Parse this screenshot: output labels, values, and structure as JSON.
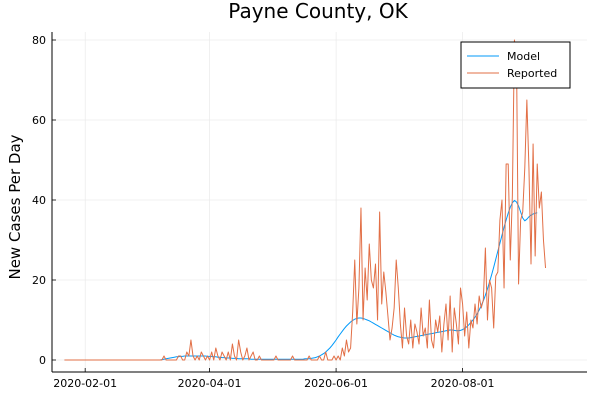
{
  "chart_data": {
    "type": "line",
    "title": "Payne County, OK",
    "xlabel": "",
    "ylabel": "New Cases Per Day",
    "x_start": "2020-01-22",
    "xlim": [
      "2020-01-16",
      "2020-09-30"
    ],
    "ylim": [
      -3,
      82
    ],
    "x_ticks": [
      "2020-02-01",
      "2020-04-01",
      "2020-06-01",
      "2020-08-01"
    ],
    "y_ticks": [
      0,
      20,
      40,
      60,
      80
    ],
    "grid": true,
    "legend_position": "top-right",
    "series": [
      {
        "name": "Model",
        "color": "#009AFA",
        "values": [
          0,
          0,
          0,
          0,
          0,
          0,
          0,
          0,
          0,
          0,
          0,
          0,
          0,
          0,
          0,
          0,
          0,
          0,
          0,
          0,
          0,
          0,
          0,
          0,
          0,
          0,
          0,
          0,
          0,
          0,
          0,
          0,
          0,
          0,
          0,
          0,
          0,
          0,
          0,
          0,
          0,
          0,
          0,
          0,
          0,
          0,
          0,
          0.1,
          0.2,
          0.3,
          0.4,
          0.5,
          0.6,
          0.7,
          0.8,
          0.8,
          0.9,
          0.9,
          1,
          1,
          1,
          1,
          1,
          1,
          1,
          1,
          1,
          1,
          1,
          0.9,
          0.9,
          0.9,
          0.8,
          0.8,
          0.7,
          0.7,
          0.6,
          0.6,
          0.5,
          0.5,
          0.5,
          0.4,
          0.4,
          0.4,
          0.3,
          0.3,
          0.3,
          0.3,
          0.3,
          0.3,
          0.2,
          0.2,
          0.2,
          0.2,
          0.2,
          0.2,
          0.2,
          0.2,
          0.2,
          0.2,
          0.2,
          0.2,
          0.2,
          0.2,
          0.2,
          0.2,
          0.2,
          0.2,
          0.2,
          0.2,
          0.2,
          0.2,
          0.2,
          0.2,
          0.2,
          0.2,
          0.3,
          0.3,
          0.3,
          0.4,
          0.5,
          0.6,
          0.8,
          1.0,
          1.3,
          1.6,
          2.0,
          2.5,
          3.0,
          3.6,
          4.3,
          5.0,
          5.8,
          6.5,
          7.2,
          7.9,
          8.5,
          9.0,
          9.5,
          9.9,
          10.2,
          10.4,
          10.5,
          10.5,
          10.4,
          10.2,
          10.0,
          9.8,
          9.5,
          9.2,
          8.9,
          8.6,
          8.3,
          8.0,
          7.7,
          7.4,
          7.1,
          6.8,
          6.5,
          6.2,
          6.0,
          5.8,
          5.7,
          5.6,
          5.5,
          5.5,
          5.5,
          5.6,
          5.7,
          5.8,
          5.9,
          6.0,
          6.1,
          6.2,
          6.3,
          6.4,
          6.5,
          6.6,
          6.7,
          6.8,
          6.9,
          7.0,
          7.1,
          7.2,
          7.3,
          7.4,
          7.5,
          7.5,
          7.4,
          7.3,
          7.3,
          7.4,
          7.6,
          7.9,
          8.3,
          8.8,
          9.4,
          10.0,
          10.7,
          11.5,
          12.5,
          13.6,
          14.8,
          16.2,
          17.8,
          19.5,
          21.3,
          23.2,
          25.2,
          27.2,
          29.2,
          31.2,
          33.2,
          35.0,
          36.7,
          38.2,
          39.3,
          39.9,
          39.5,
          38.5,
          37.0,
          35.5,
          34.8,
          35.2,
          35.8,
          36.2,
          36.5,
          36.7,
          36.8
        ]
      },
      {
        "name": "Reported",
        "color": "#E26F46",
        "values": [
          0,
          0,
          0,
          0,
          0,
          0,
          0,
          0,
          0,
          0,
          0,
          0,
          0,
          0,
          0,
          0,
          0,
          0,
          0,
          0,
          0,
          0,
          0,
          0,
          0,
          0,
          0,
          0,
          0,
          0,
          0,
          0,
          0,
          0,
          0,
          0,
          0,
          0,
          0,
          0,
          0,
          0,
          0,
          0,
          0,
          0,
          0,
          0,
          1,
          0,
          0,
          0,
          0,
          0,
          0,
          1,
          1,
          0,
          0,
          2,
          1,
          5,
          1,
          0,
          1,
          0,
          2,
          1,
          0,
          1,
          0,
          2,
          0,
          3,
          1,
          0,
          2,
          1,
          0,
          2,
          0,
          4,
          1,
          0,
          5,
          2,
          0,
          1,
          3,
          0,
          1,
          2,
          0,
          0,
          1,
          0,
          0,
          0,
          0,
          0,
          0,
          0,
          1,
          0,
          0,
          0,
          0,
          0,
          0,
          0,
          1,
          0,
          0,
          0,
          0,
          0,
          0,
          0,
          1,
          0,
          0,
          0,
          0,
          1,
          0,
          0,
          2,
          0,
          0,
          0,
          1,
          0,
          1,
          0,
          3,
          1,
          5,
          2,
          3,
          12,
          25,
          9,
          18,
          38,
          10,
          23,
          15,
          29,
          20,
          18,
          24,
          10,
          37,
          14,
          22,
          17,
          11,
          5,
          8,
          13,
          25,
          18,
          9,
          3,
          13,
          6,
          4,
          10,
          3,
          9,
          7,
          4,
          13,
          6,
          8,
          3,
          15,
          5,
          3,
          10,
          7,
          11,
          2,
          9,
          14,
          5,
          16,
          2,
          13,
          9,
          4,
          18,
          14,
          6,
          12,
          3,
          10,
          8,
          14,
          9,
          16,
          13,
          15,
          28,
          10,
          20,
          18,
          8,
          21,
          22,
          35,
          40,
          18,
          49,
          49,
          25,
          41,
          80,
          76,
          19,
          35,
          37,
          48,
          65,
          48,
          24,
          54,
          26,
          49,
          38,
          42,
          30,
          23
        ]
      }
    ]
  }
}
